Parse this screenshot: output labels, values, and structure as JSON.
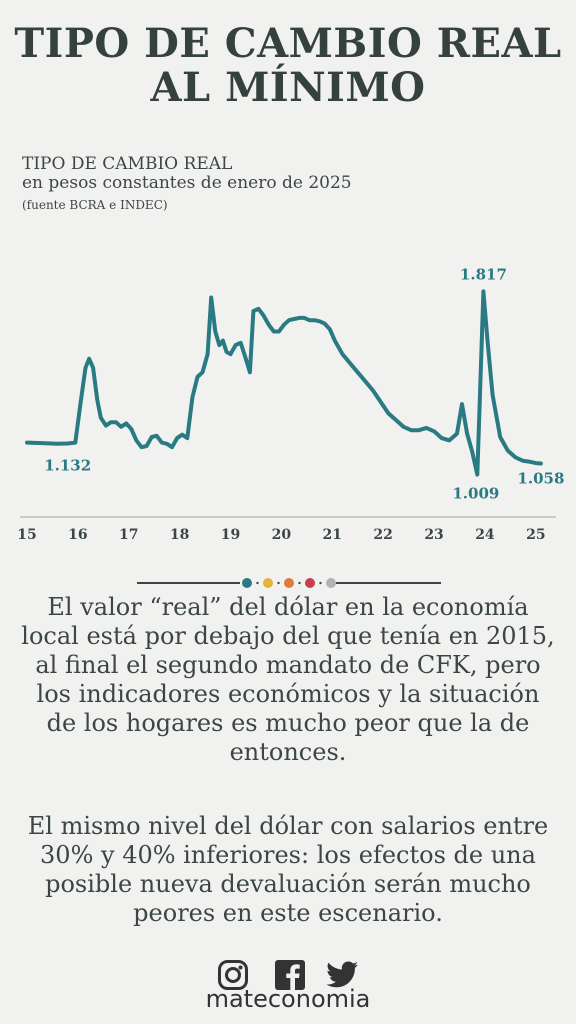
{
  "title_line1": "TIPO DE CAMBIO REAL",
  "title_line2": "AL MÍNIMO",
  "subtitle_line1": "TIPO DE CAMBIO REAL",
  "subtitle_line2": "en pesos constantes de enero de 2025",
  "source": "(fuente BCRA e INDEC)",
  "body_paragraph_1": "El valor “real” del dólar en la economía local está por debajo del que tenía en 2015, al final el segundo mandato de CFK, pero los indicadores económicos y la situación de los hogares es mucho peor que la de entonces.",
  "body_paragraph_2": "El mismo nivel del dólar con salarios entre 30% y 40% inferiores: los efectos de una posible nueva devaluación serán mucho peores en este escenario.",
  "brand": "mateconomia",
  "colors": {
    "line": "#2a7a83",
    "label": "#2a7a83",
    "dots": [
      "#2a7a83",
      "#e3b43b",
      "#e07b3a",
      "#c8404a",
      "#b3b3b3"
    ]
  },
  "icons": [
    "instagram-icon",
    "facebook-icon",
    "twitter-icon"
  ],
  "chart_data": {
    "type": "line",
    "title": "TIPO DE CAMBIO REAL",
    "subtitle": "en pesos constantes de enero de 2025",
    "x_ticks": [
      "15",
      "16",
      "17",
      "18",
      "19",
      "20",
      "21",
      "22",
      "23",
      "24",
      "25"
    ],
    "xlim": [
      2015.0,
      2025.2
    ],
    "ylim": [
      0.95,
      1.92
    ],
    "grid": false,
    "annotations": [
      {
        "x": 2015.8,
        "y": 1.132,
        "text": "1.132"
      },
      {
        "x": 2023.97,
        "y": 1.817,
        "text": "1.817"
      },
      {
        "x": 2023.9,
        "y": 1.009,
        "text": "1.009"
      },
      {
        "x": 2025.1,
        "y": 1.058,
        "text": "1.058"
      }
    ],
    "series": [
      {
        "x": [
          2015.0,
          2015.3,
          2015.6,
          2015.8,
          2015.95,
          2016.05,
          2016.15,
          2016.22,
          2016.3,
          2016.38,
          2016.45,
          2016.55,
          2016.65,
          2016.75,
          2016.85,
          2016.95,
          2017.05,
          2017.15,
          2017.25,
          2017.35,
          2017.45,
          2017.55,
          2017.65,
          2017.75,
          2017.85,
          2017.95,
          2018.05,
          2018.15,
          2018.25,
          2018.35,
          2018.45,
          2018.55,
          2018.62,
          2018.7,
          2018.78,
          2018.85,
          2018.92,
          2019.0,
          2019.1,
          2019.2,
          2019.3,
          2019.38,
          2019.45,
          2019.55,
          2019.65,
          2019.75,
          2019.85,
          2019.95,
          2020.05,
          2020.15,
          2020.25,
          2020.35,
          2020.45,
          2020.55,
          2020.65,
          2020.75,
          2020.85,
          2020.95,
          2021.05,
          2021.2,
          2021.35,
          2021.5,
          2021.65,
          2021.8,
          2021.95,
          2022.1,
          2022.25,
          2022.4,
          2022.55,
          2022.7,
          2022.85,
          2023.0,
          2023.15,
          2023.3,
          2023.45,
          2023.55,
          2023.65,
          2023.75,
          2023.85,
          2023.93,
          2023.97,
          2024.05,
          2024.15,
          2024.3,
          2024.45,
          2024.6,
          2024.75,
          2024.9,
          2025.0,
          2025.1
        ],
        "y": [
          1.15,
          1.148,
          1.145,
          1.146,
          1.15,
          1.32,
          1.48,
          1.52,
          1.48,
          1.34,
          1.26,
          1.225,
          1.24,
          1.24,
          1.22,
          1.235,
          1.21,
          1.16,
          1.13,
          1.135,
          1.175,
          1.18,
          1.15,
          1.145,
          1.13,
          1.17,
          1.185,
          1.17,
          1.35,
          1.44,
          1.46,
          1.54,
          1.79,
          1.64,
          1.58,
          1.6,
          1.55,
          1.54,
          1.58,
          1.59,
          1.52,
          1.46,
          1.73,
          1.74,
          1.71,
          1.67,
          1.64,
          1.64,
          1.67,
          1.69,
          1.695,
          1.7,
          1.7,
          1.69,
          1.69,
          1.685,
          1.675,
          1.65,
          1.6,
          1.54,
          1.5,
          1.46,
          1.42,
          1.38,
          1.33,
          1.28,
          1.25,
          1.22,
          1.205,
          1.205,
          1.215,
          1.2,
          1.17,
          1.16,
          1.19,
          1.32,
          1.19,
          1.11,
          1.009,
          1.55,
          1.817,
          1.6,
          1.36,
          1.175,
          1.115,
          1.085,
          1.07,
          1.065,
          1.06,
          1.058
        ]
      }
    ]
  }
}
